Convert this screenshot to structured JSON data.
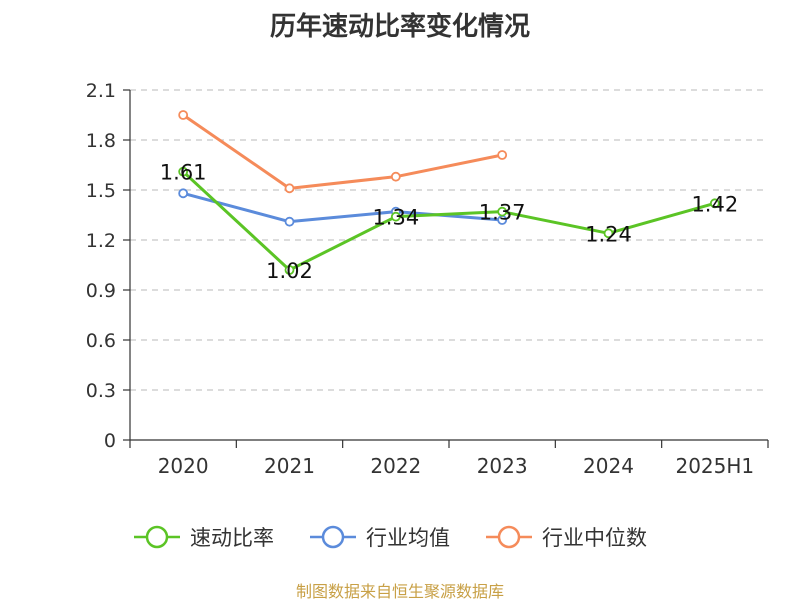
{
  "chart_data": {
    "type": "line",
    "title": "历年速动比率变化情况",
    "categories": [
      "2020",
      "2021",
      "2022",
      "2023",
      "2024",
      "2025H1"
    ],
    "ylim": [
      0,
      2.1
    ],
    "yticks": [
      "0",
      "0.3",
      "0.6",
      "0.9",
      "1.2",
      "1.5",
      "1.8",
      "2.1"
    ],
    "grid": true,
    "legend_position": "bottom",
    "series": [
      {
        "name": "速动比率",
        "color": "#5bc425",
        "values": [
          1.61,
          1.02,
          1.34,
          1.37,
          1.24,
          1.42
        ],
        "labels": [
          "1.61",
          "1.02",
          "1.34",
          "1.37",
          "1.24",
          "1.42"
        ]
      },
      {
        "name": "行业均值",
        "color": "#5b8bdb",
        "values": [
          1.48,
          1.31,
          1.37,
          1.32,
          null,
          null
        ]
      },
      {
        "name": "行业中位数",
        "color": "#f58b5a",
        "values": [
          1.95,
          1.51,
          1.58,
          1.71,
          null,
          null
        ]
      }
    ]
  },
  "source": "制图数据来自恒生聚源数据库"
}
